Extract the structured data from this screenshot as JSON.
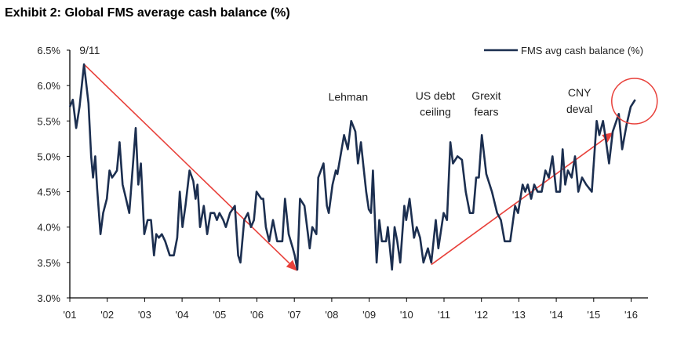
{
  "chart_data": {
    "type": "line",
    "title": "Exhibit 2: Global FMS average cash balance (%)",
    "xlabel": "",
    "ylabel": "",
    "xlim": [
      2001,
      2016
    ],
    "ylim": [
      3.0,
      6.5
    ],
    "yticks": [
      "3.0%",
      "3.5%",
      "4.0%",
      "4.5%",
      "5.0%",
      "5.5%",
      "6.0%",
      "6.5%"
    ],
    "xticks": [
      "'01",
      "'02",
      "'03",
      "'04",
      "'05",
      "'06",
      "'07",
      "'08",
      "'09",
      "'10",
      "'11",
      "'12",
      "'13",
      "'14",
      "'15",
      "'16"
    ],
    "grid": false,
    "legend": {
      "placement": "top-right",
      "entries": [
        "FMS avg cash balance (%)"
      ]
    },
    "colors": {
      "series": "#1c2f50",
      "annotation": "#e8403a"
    },
    "series": [
      {
        "name": "FMS avg cash balance (%)",
        "x": [
          2001.0,
          2001.08,
          2001.17,
          2001.26,
          2001.38,
          2001.5,
          2001.57,
          2001.62,
          2001.68,
          2001.73,
          2001.82,
          2001.89,
          2001.99,
          2002.06,
          2002.13,
          2002.2,
          2002.26,
          2002.33,
          2002.41,
          2002.48,
          2002.59,
          2002.76,
          2002.83,
          2002.9,
          2002.99,
          2003.08,
          2003.17,
          2003.25,
          2003.31,
          2003.38,
          2003.46,
          2003.55,
          2003.67,
          2003.78,
          2003.87,
          2003.94,
          2004.01,
          2004.09,
          2004.2,
          2004.3,
          2004.36,
          2004.41,
          2004.48,
          2004.58,
          2004.67,
          2004.76,
          2004.86,
          2004.93,
          2005.0,
          2005.1,
          2005.17,
          2005.28,
          2005.41,
          2005.5,
          2005.56,
          2005.66,
          2005.76,
          2005.84,
          2005.92,
          2005.99,
          2006.12,
          2006.17,
          2006.24,
          2006.33,
          2006.43,
          2006.54,
          2006.68,
          2006.75,
          2006.85,
          2006.96,
          2007.01,
          2007.08,
          2007.15,
          2007.27,
          2007.41,
          2007.48,
          2007.59,
          2007.64,
          2007.78,
          2007.87,
          2007.92,
          2008.02,
          2008.11,
          2008.15,
          2008.33,
          2008.43,
          2008.52,
          2008.63,
          2008.7,
          2008.78,
          2008.85,
          2008.92,
          2008.99,
          2009.05,
          2009.1,
          2009.2,
          2009.27,
          2009.34,
          2009.45,
          2009.5,
          2009.61,
          2009.68,
          2009.75,
          2009.83,
          2009.94,
          2009.99,
          2010.08,
          2010.2,
          2010.27,
          2010.36,
          2010.45,
          2010.57,
          2010.66,
          2010.78,
          2010.85,
          2010.99,
          2011.08,
          2011.17,
          2011.24,
          2011.36,
          2011.48,
          2011.58,
          2011.69,
          2011.78,
          2011.86,
          2011.93,
          2012.01,
          2012.13,
          2012.28,
          2012.42,
          2012.52,
          2012.62,
          2012.77,
          2012.9,
          2012.98,
          2013.1,
          2013.17,
          2013.24,
          2013.33,
          2013.41,
          2013.5,
          2013.61,
          2013.71,
          2013.8,
          2013.9,
          2014.0,
          2014.1,
          2014.17,
          2014.24,
          2014.31,
          2014.41,
          2014.5,
          2014.59,
          2014.69,
          2014.8,
          2014.95,
          2015.08,
          2015.15,
          2015.25,
          2015.32,
          2015.41,
          2015.51,
          2015.67,
          2015.76,
          2015.88,
          2015.99,
          2016.11
        ],
        "y": [
          5.7,
          5.8,
          5.4,
          5.7,
          6.3,
          5.75,
          5.0,
          4.7,
          5.0,
          4.55,
          3.9,
          4.2,
          4.4,
          4.8,
          4.7,
          4.75,
          4.8,
          5.2,
          4.6,
          4.45,
          4.2,
          5.4,
          4.6,
          4.9,
          3.9,
          4.1,
          4.1,
          3.6,
          3.9,
          3.85,
          3.9,
          3.8,
          3.6,
          3.6,
          3.85,
          4.5,
          4.0,
          4.3,
          4.8,
          4.65,
          4.4,
          4.6,
          4.0,
          4.3,
          3.9,
          4.2,
          4.2,
          4.1,
          4.2,
          4.1,
          4.0,
          4.2,
          4.3,
          3.6,
          3.5,
          4.1,
          4.2,
          4.0,
          4.1,
          4.5,
          4.4,
          4.4,
          4.0,
          3.8,
          4.1,
          3.8,
          3.8,
          4.4,
          3.9,
          3.7,
          3.6,
          3.4,
          4.4,
          4.3,
          3.7,
          4.0,
          3.9,
          4.7,
          4.9,
          4.3,
          4.2,
          4.6,
          4.8,
          4.75,
          5.3,
          5.1,
          5.5,
          5.35,
          4.9,
          5.2,
          4.85,
          4.5,
          4.25,
          4.2,
          4.8,
          3.5,
          4.1,
          3.8,
          3.8,
          4.0,
          3.4,
          4.0,
          3.8,
          3.5,
          4.3,
          4.1,
          4.4,
          3.85,
          4.0,
          3.85,
          3.5,
          3.7,
          3.5,
          4.1,
          3.7,
          4.2,
          4.1,
          5.2,
          4.9,
          5.0,
          4.95,
          4.5,
          4.2,
          4.2,
          4.7,
          4.7,
          5.3,
          4.75,
          4.5,
          4.2,
          4.1,
          3.8,
          3.8,
          4.3,
          4.2,
          4.6,
          4.5,
          4.6,
          4.4,
          4.6,
          4.5,
          4.5,
          4.8,
          4.7,
          5.0,
          4.5,
          4.5,
          5.1,
          4.6,
          4.8,
          4.7,
          5.0,
          4.5,
          4.7,
          4.6,
          4.5,
          5.5,
          5.3,
          5.5,
          5.25,
          4.9,
          5.35,
          5.6,
          5.1,
          5.45,
          5.7,
          5.8
        ]
      }
    ],
    "annotations": [
      "9/11",
      "Lehman",
      "US debt",
      "ceiling",
      "Grexit",
      "fears",
      "CNY",
      "deval"
    ]
  }
}
